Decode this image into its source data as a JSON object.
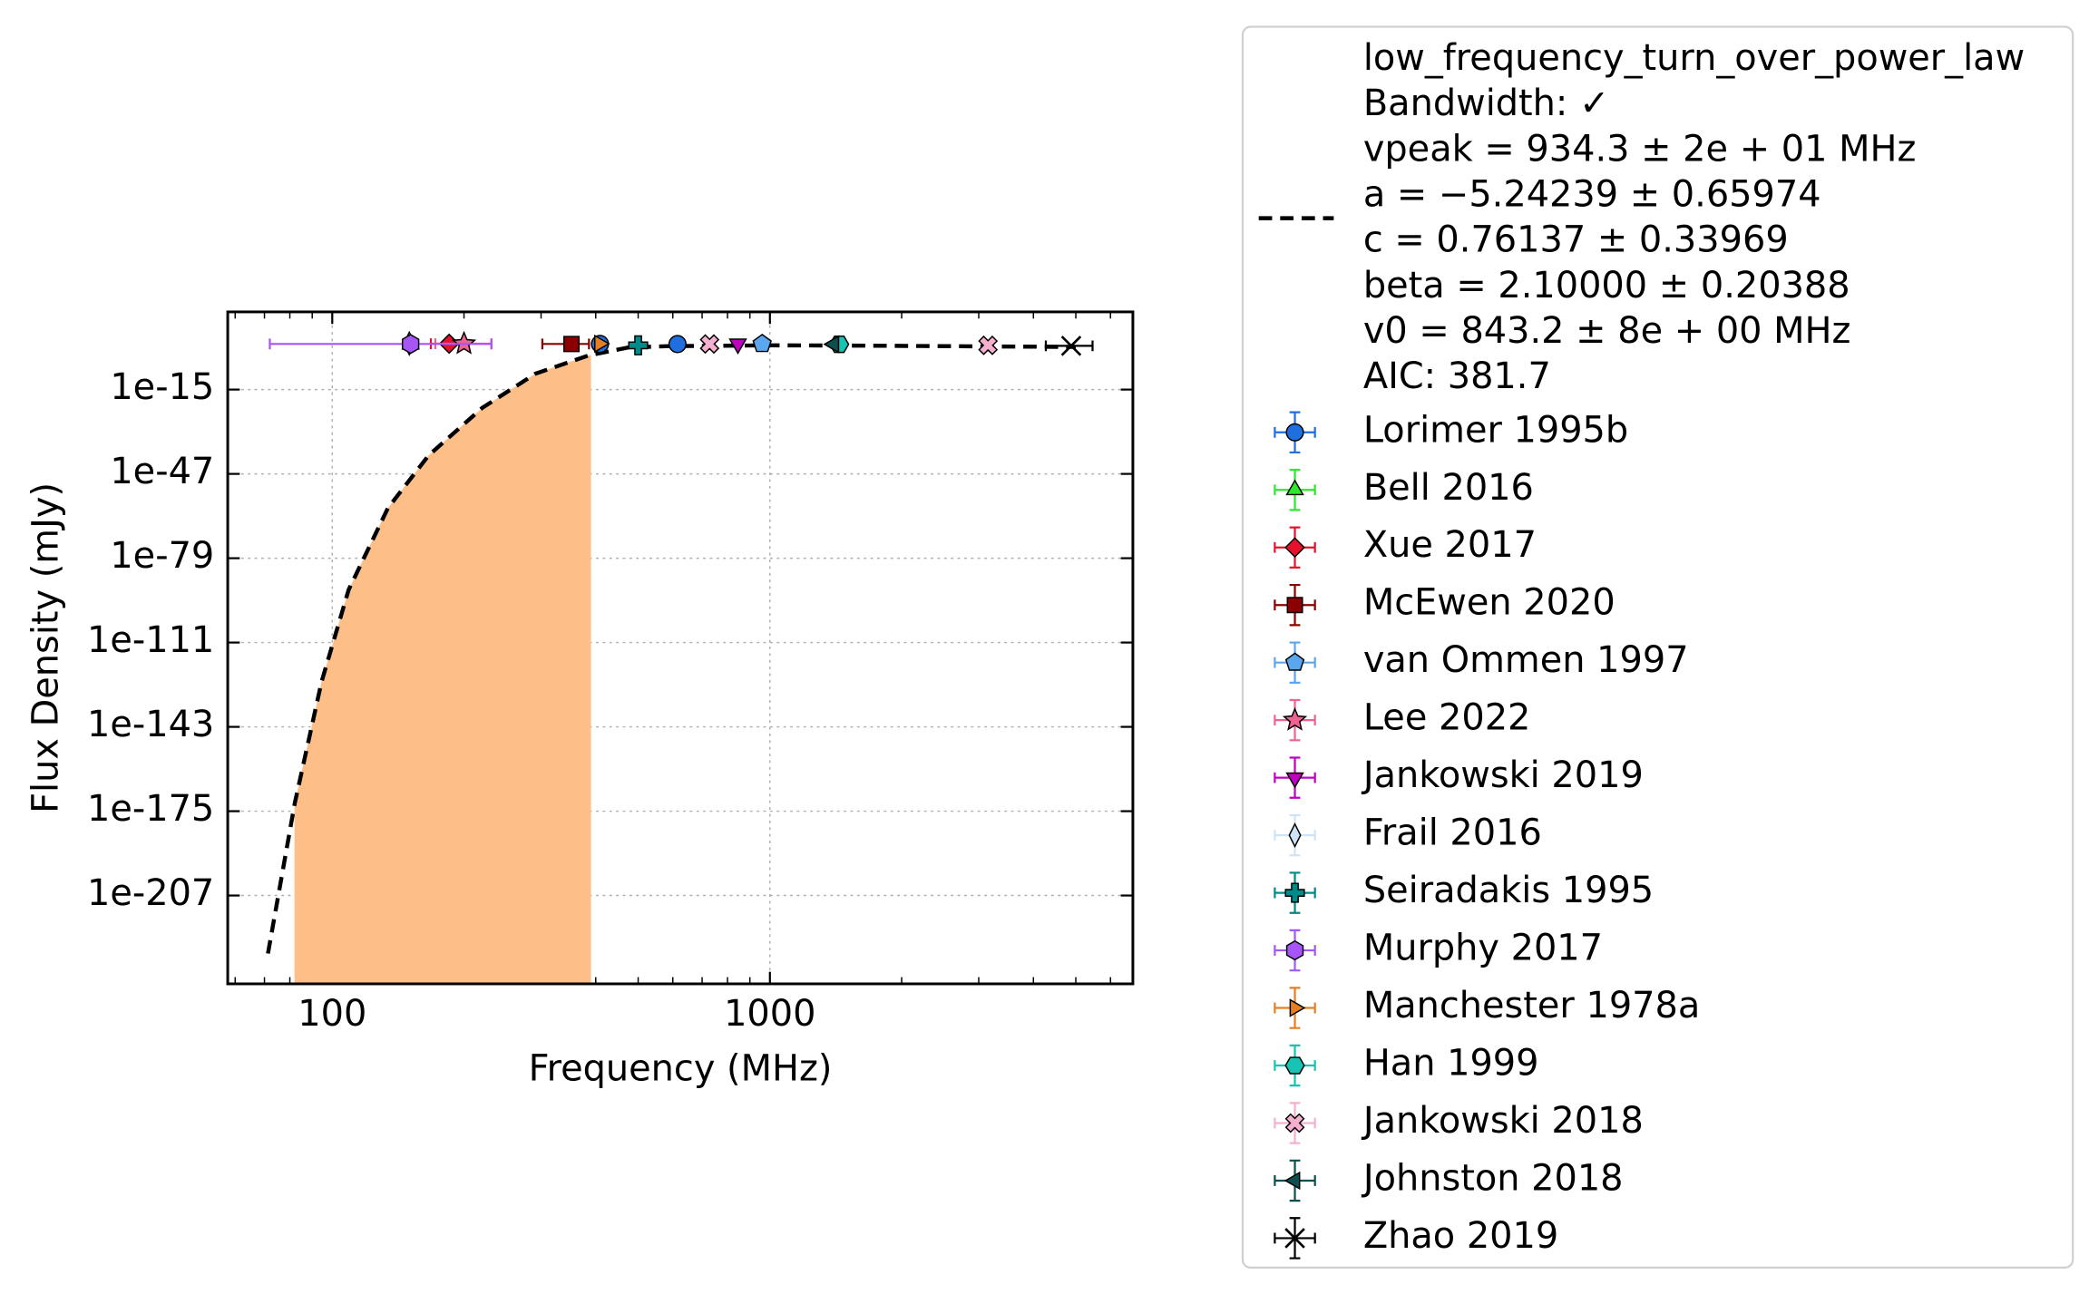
{
  "chart_data": {
    "type": "scatter",
    "x_label": "Frequency (MHz)",
    "y_label": "Flux Density (mJy)",
    "xscale": "log",
    "yscale": "log",
    "xlim": [
      57.7,
      6750
    ],
    "ylim": [
      3e-241,
      300000000000000.0
    ],
    "xticks": [
      100,
      1000
    ],
    "xminorticks": [
      60,
      70,
      80,
      90,
      200,
      300,
      400,
      500,
      600,
      700,
      800,
      900,
      2000,
      3000,
      4000,
      5000,
      6000
    ],
    "yticks": [
      {
        "value": 1e-15,
        "label": "1e-15"
      },
      {
        "value": 1e-47,
        "label": "1e-47"
      },
      {
        "value": 1e-79,
        "label": "1e-79"
      },
      {
        "value": 1e-111,
        "label": "1e-111"
      },
      {
        "value": 1e-143,
        "label": "1e-143"
      },
      {
        "value": 1e-175,
        "label": "1e-175"
      },
      {
        "value": 1e-207,
        "label": "1e-207"
      }
    ],
    "grid": true,
    "legend": "outside right",
    "bandwidth_fill": {
      "xlim": [
        82,
        390
      ],
      "color": "#fdbf87"
    },
    "fit": {
      "label": [
        "low_frequency_turn_over_power_law",
        "Bandwidth: ✓",
        "vpeak = 934.3 ± 2e + 01 MHz",
        "a = −5.24239 ± 0.65974",
        "c = 0.76137 ± 0.33969",
        "beta = 2.10000 ± 0.20388",
        "v0 = 843.2 ± 8e + 00 MHz",
        "AIC: 381.7"
      ],
      "color": "#000000",
      "x": [
        71.3,
        82.1,
        94.5,
        109,
        134,
        166,
        220,
        291,
        386,
        476,
        590,
        1000,
        1500,
        3000,
        5000
      ],
      "values": [
        1e-229,
        1e-172,
        1e-126,
        1e-91,
        1e-60,
        1e-40,
        1e-22,
        1e-09,
        0.01,
        10,
        30,
        60,
        50,
        25,
        15
      ]
    },
    "series": [
      {
        "name": "Lorimer 1995b",
        "color": "#1f6fe0",
        "marker": "o",
        "x": [
          409,
          615
        ],
        "values": [
          200,
          180
        ]
      },
      {
        "name": "Bell 2016",
        "color": "#2ee82e",
        "marker": "^",
        "x": [
          151
        ],
        "values": [
          150
        ]
      },
      {
        "name": "Xue 2017",
        "color": "#e8112d",
        "marker": "D",
        "x": [
          185
        ],
        "values": [
          250
        ],
        "xerr": [
          [
            17,
            17
          ]
        ]
      },
      {
        "name": "McEwen 2020",
        "color": "#8b0000",
        "marker": "s",
        "x": [
          352
        ],
        "values": [
          200
        ],
        "xerr": [
          [
            50,
            34
          ]
        ]
      },
      {
        "name": "van Ommen 1997",
        "color": "#5aa7f0",
        "marker": "p",
        "x": [
          960
        ],
        "values": [
          220
        ]
      },
      {
        "name": "Lee 2022",
        "color": "#f06292",
        "marker": "*",
        "x": [
          200
        ],
        "values": [
          250
        ],
        "xerr": [
          [
            28,
            31
          ]
        ]
      },
      {
        "name": "Jankowski 2019",
        "color": "#c000c0",
        "marker": "v",
        "x": [
          845
        ],
        "values": [
          220
        ]
      },
      {
        "name": "Frail 2016",
        "color": "#cfe3f7",
        "marker": "d",
        "x": [
          150
        ],
        "values": [
          300
        ]
      },
      {
        "name": "Seiradakis 1995",
        "color": "#008b8b",
        "marker": "P",
        "x": [
          500
        ],
        "values": [
          60
        ]
      },
      {
        "name": "Murphy 2017",
        "color": "#a855f7",
        "marker": "h",
        "x": [
          151
        ],
        "values": [
          200
        ],
        "xerr": [
          [
            79,
            80
          ]
        ]
      },
      {
        "name": "Manchester 1978a",
        "color": "#e67e22",
        "marker": ">",
        "x": [
          408
        ],
        "values": [
          250
        ]
      },
      {
        "name": "Han 1999",
        "color": "#17c3b2",
        "marker": "H",
        "x": [
          1440
        ],
        "values": [
          150
        ]
      },
      {
        "name": "Jankowski 2018",
        "color": "#f6b0cf",
        "marker": "X",
        "x": [
          728,
          3150
        ],
        "values": [
          200,
          60
        ]
      },
      {
        "name": "Johnston 2018",
        "color": "#0d4f4f",
        "marker": "<",
        "x": [
          1400
        ],
        "values": [
          150
        ]
      },
      {
        "name": "Zhao 2019",
        "color": "#000000",
        "marker": "x",
        "x": [
          4880
        ],
        "values": [
          40
        ],
        "xerr": [
          [
            610,
            580
          ]
        ]
      }
    ]
  }
}
